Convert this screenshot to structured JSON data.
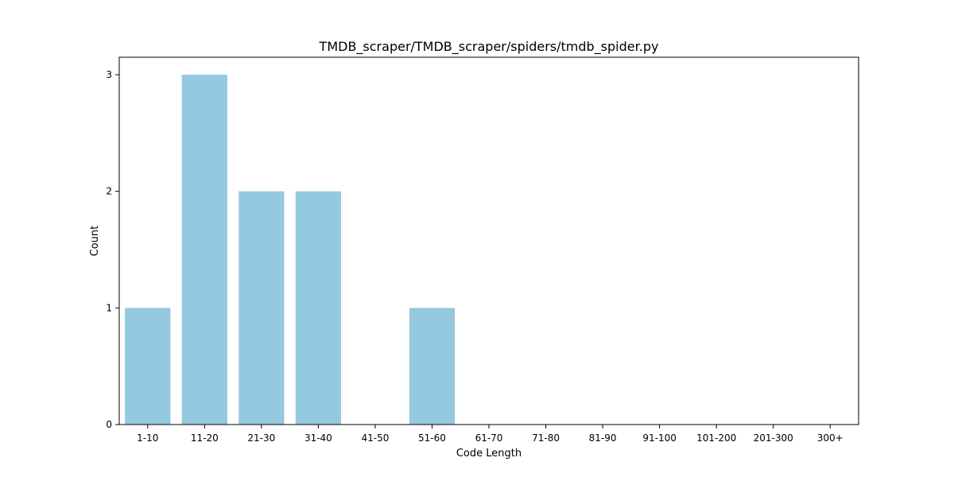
{
  "chart_data": {
    "type": "bar",
    "title": "TMDB_scraper/TMDB_scraper/spiders/tmdb_spider.py",
    "xlabel": "Code Length",
    "ylabel": "Count",
    "categories": [
      "1-10",
      "11-20",
      "21-30",
      "31-40",
      "41-50",
      "51-60",
      "61-70",
      "71-80",
      "81-90",
      "91-100",
      "101-200",
      "201-300",
      "300+"
    ],
    "values": [
      1,
      3,
      2,
      2,
      0,
      1,
      0,
      0,
      0,
      0,
      0,
      0,
      0
    ],
    "yticks": [
      0,
      1,
      2,
      3
    ],
    "ylim": [
      0,
      3.15
    ],
    "grid": false,
    "bar_color": "#94c9df"
  }
}
